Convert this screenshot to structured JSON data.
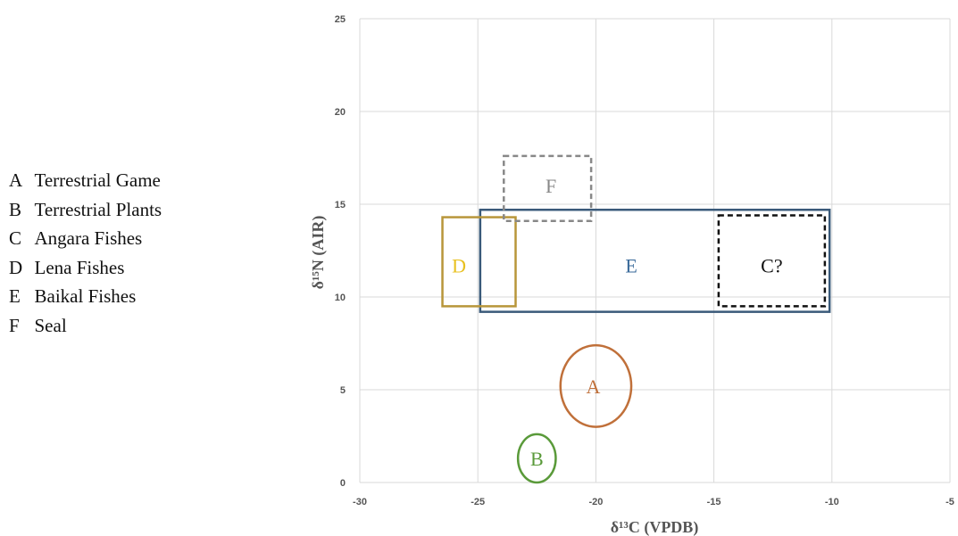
{
  "legend": [
    {
      "key": "A",
      "text": "Terrestrial Game"
    },
    {
      "key": "B",
      "text": "Terrestrial Plants"
    },
    {
      "key": "C",
      "text": "Angara Fishes"
    },
    {
      "key": "D",
      "text": "Lena Fishes"
    },
    {
      "key": "E",
      "text": "Baikal Fishes"
    },
    {
      "key": "F",
      "text": "Seal"
    }
  ],
  "chart_data": {
    "type": "scatter",
    "title": "",
    "xlabel": "δ¹³C (VPDB)",
    "ylabel": "δ¹⁵N (AIR)",
    "xlim": [
      -30,
      -5
    ],
    "ylim": [
      0,
      25
    ],
    "x_ticks": [
      -30,
      -25,
      -20,
      -15,
      -10,
      -5
    ],
    "y_ticks": [
      0,
      5,
      10,
      15,
      20,
      25
    ],
    "grid": true,
    "regions": [
      {
        "label": "A",
        "shape": "ellipse",
        "center": [
          -20,
          5.2
        ],
        "radius": [
          1.5,
          2.2
        ],
        "color": "#c0703a",
        "style": "solid"
      },
      {
        "label": "B",
        "shape": "ellipse",
        "center": [
          -22.5,
          1.3
        ],
        "radius": [
          0.8,
          1.3
        ],
        "color": "#5a9a3a",
        "style": "solid"
      },
      {
        "label": "C?",
        "shape": "rect",
        "x": [
          -14.8,
          -10.3
        ],
        "y": [
          9.5,
          14.4
        ],
        "color": "#111111",
        "style": "dashed"
      },
      {
        "label": "D",
        "shape": "rect",
        "x": [
          -26.5,
          -23.4
        ],
        "y": [
          9.5,
          14.3
        ],
        "color": "#b8963a",
        "label_color": "#e8c020",
        "style": "solid"
      },
      {
        "label": "E",
        "shape": "rect",
        "x": [
          -24.9,
          -10.1
        ],
        "y": [
          9.2,
          14.7
        ],
        "color": "#3a5a7a",
        "label_color": "#3a6a9a",
        "style": "solid"
      },
      {
        "label": "F",
        "shape": "rect",
        "x": [
          -23.9,
          -20.2
        ],
        "y": [
          14.1,
          17.6
        ],
        "color": "#888888",
        "style": "dashed"
      }
    ]
  }
}
